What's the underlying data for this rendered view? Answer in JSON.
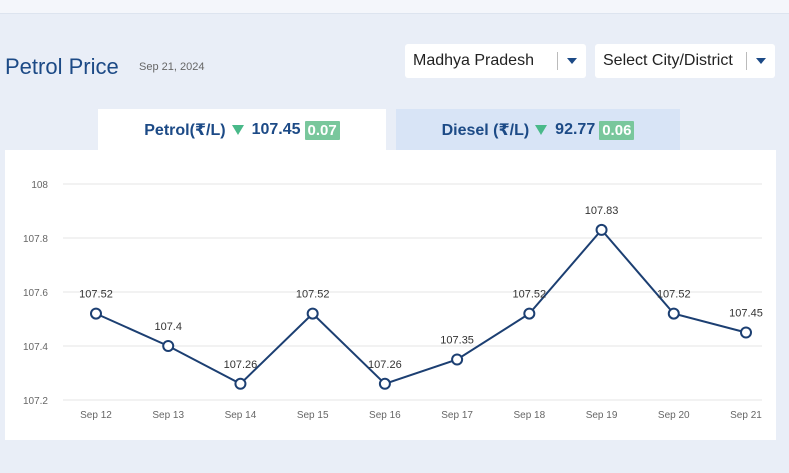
{
  "header": {
    "title": "Petrol Price",
    "date": "Sep 21, 2024"
  },
  "selectors": {
    "state": "Madhya Pradesh",
    "city": "Select City/District"
  },
  "tabs": [
    {
      "fuel": "Petrol(₹/L)",
      "price": "107.45",
      "change": "0.07",
      "active": true
    },
    {
      "fuel": "Diesel (₹/L)",
      "price": "92.77",
      "change": "0.06",
      "active": false
    }
  ],
  "colors": {
    "line": "#1c3f72",
    "accent": "#1c4a86",
    "down": "#49b989"
  },
  "chart_data": {
    "type": "line",
    "title": "",
    "xlabel": "",
    "ylabel": "",
    "categories": [
      "Sep 12",
      "Sep 13",
      "Sep 14",
      "Sep 15",
      "Sep 16",
      "Sep 17",
      "Sep 18",
      "Sep 19",
      "Sep 20",
      "Sep 21"
    ],
    "values": [
      107.52,
      107.4,
      107.26,
      107.52,
      107.26,
      107.35,
      107.52,
      107.83,
      107.52,
      107.45
    ],
    "data_labels": [
      "107.52",
      "107.4",
      "107.26",
      "107.52",
      "107.26",
      "107.35",
      "107.52",
      "107.83",
      "107.52",
      "107.45"
    ],
    "yticks": [
      "107.2",
      "107.4",
      "107.6",
      "107.8",
      "108"
    ],
    "ylim": [
      107.2,
      108
    ],
    "grid": true
  }
}
